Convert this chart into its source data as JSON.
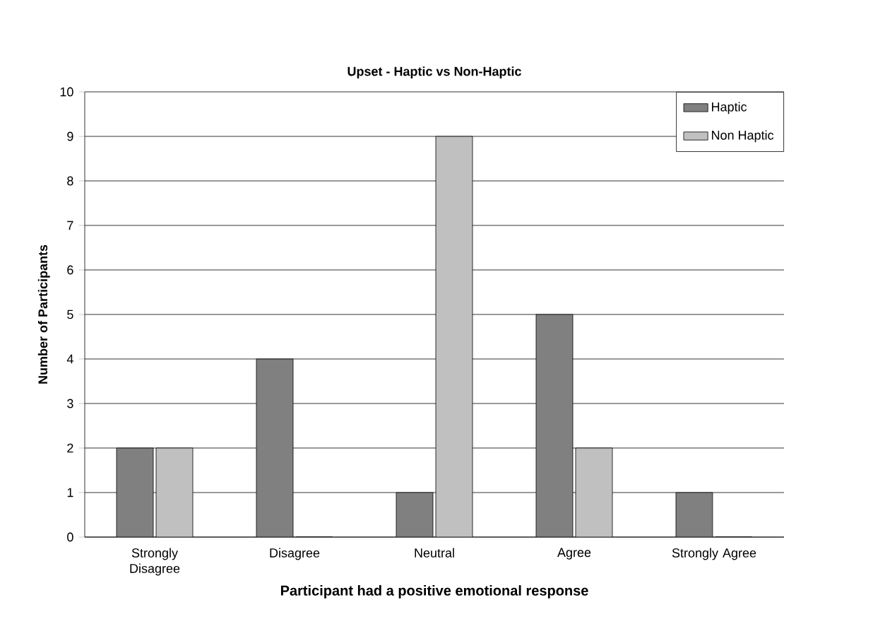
{
  "chart_data": {
    "type": "bar",
    "title": "Upset - Haptic vs Non-Haptic",
    "xlabel": "Participant had a positive emotional response",
    "ylabel": "Number of Participants",
    "categories": [
      "Strongly Disagree",
      "Disagree",
      "Neutral",
      "Agree",
      "Strongly Agree"
    ],
    "series": [
      {
        "name": "Haptic",
        "color": "#808080",
        "values": [
          2,
          4,
          1,
          5,
          1
        ]
      },
      {
        "name": "Non Haptic",
        "color": "#c0c0c0",
        "values": [
          2,
          0,
          9,
          2,
          0
        ]
      }
    ],
    "ylim": [
      0,
      10
    ],
    "yticks": [
      0,
      1,
      2,
      3,
      4,
      5,
      6,
      7,
      8,
      9,
      10
    ],
    "grid": "y",
    "legend": "top right"
  }
}
